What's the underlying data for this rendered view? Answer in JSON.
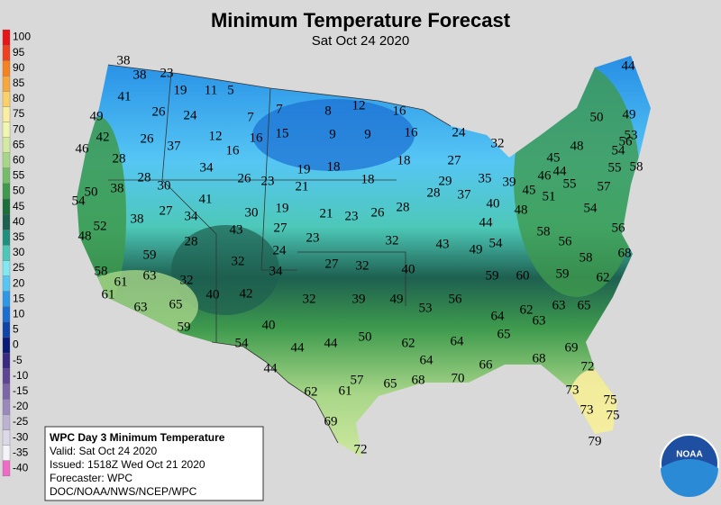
{
  "header": {
    "title": "Minimum Temperature Forecast",
    "subtitle": "Sat Oct 24 2020"
  },
  "legend": [
    {
      "value": 100,
      "color": "#e8141a"
    },
    {
      "value": 95,
      "color": "#f0401e"
    },
    {
      "value": 90,
      "color": "#f5821f"
    },
    {
      "value": 85,
      "color": "#f8a73a"
    },
    {
      "value": 80,
      "color": "#fbd066"
    },
    {
      "value": 75,
      "color": "#fbeea0"
    },
    {
      "value": 70,
      "color": "#f0f5b0"
    },
    {
      "value": 65,
      "color": "#d2eaa2"
    },
    {
      "value": 60,
      "color": "#a8d688"
    },
    {
      "value": 55,
      "color": "#76bd6a"
    },
    {
      "value": 50,
      "color": "#3e9a4d"
    },
    {
      "value": 45,
      "color": "#1a6e3a"
    },
    {
      "value": 40,
      "color": "#1e6050"
    },
    {
      "value": 35,
      "color": "#20907e"
    },
    {
      "value": 30,
      "color": "#4dc8b8"
    },
    {
      "value": 25,
      "color": "#80e8f0"
    },
    {
      "value": 20,
      "color": "#56c6f4"
    },
    {
      "value": 15,
      "color": "#2e98e8"
    },
    {
      "value": 10,
      "color": "#1a6ed2"
    },
    {
      "value": 5,
      "color": "#0f44a8"
    },
    {
      "value": 0,
      "color": "#0a1a78"
    },
    {
      "value": -5,
      "color": "#3a2a84"
    },
    {
      "value": -10,
      "color": "#5e4694"
    },
    {
      "value": -15,
      "color": "#7c66a8"
    },
    {
      "value": -20,
      "color": "#9a8abc"
    },
    {
      "value": -25,
      "color": "#bcb2d2"
    },
    {
      "value": -30,
      "color": "#dcd8e8"
    },
    {
      "value": -35,
      "color": "#f4f4f8"
    },
    {
      "value": -40,
      "color": "#f06ac8"
    }
  ],
  "info": {
    "title": "WPC Day 3 Minimum Temperature",
    "valid": "Valid: Sat Oct 24 2020",
    "issued": "Issued: 1518Z Wed Oct 21 2020",
    "forecaster": "Forecaster: WPC",
    "source": "DOC/NOAA/NWS/NCEP/WPC"
  },
  "logo": "NOAA",
  "stations": [
    38,
    38,
    23,
    19,
    11,
    5,
    41,
    26,
    24,
    7,
    7,
    8,
    12,
    16,
    49,
    42,
    26,
    37,
    12,
    16,
    16,
    15,
    9,
    9,
    16,
    24,
    32,
    46,
    28,
    34,
    19,
    18,
    18,
    27,
    28,
    30,
    26,
    23,
    21,
    18,
    29,
    28,
    37,
    35,
    39,
    45,
    50,
    38,
    54,
    41,
    27,
    34,
    30,
    19,
    21,
    23,
    26,
    28,
    40,
    48,
    51,
    52,
    38,
    43,
    27,
    48,
    28,
    23,
    32,
    43,
    44,
    49,
    54,
    58,
    56,
    59,
    24,
    27,
    32,
    40,
    58,
    68,
    58,
    61,
    63,
    32,
    32,
    34,
    59,
    60,
    59,
    62,
    61,
    40,
    42,
    32,
    39,
    49,
    56,
    53,
    63,
    65,
    63,
    65,
    62,
    63,
    64,
    59,
    40,
    50,
    44,
    44,
    62,
    64,
    65,
    54,
    69,
    68,
    64,
    66,
    72,
    44,
    57,
    65,
    68,
    70,
    62,
    61,
    73,
    75,
    73,
    75,
    69,
    72,
    79,
    44,
    50,
    49,
    56,
    54,
    53,
    48,
    45,
    46,
    44,
    55,
    58,
    55,
    57,
    54,
    56
  ]
}
